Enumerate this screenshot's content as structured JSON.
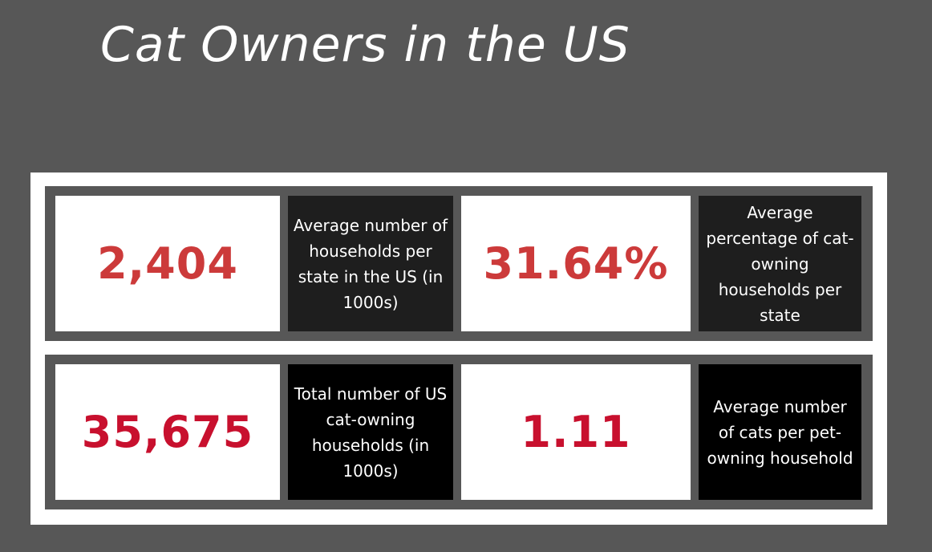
{
  "title": "Cat Owners in the US",
  "colors": {
    "background": "#575757",
    "panel": "#ffffff",
    "stat_red_top": "#cc3a3a",
    "stat_red_bottom": "#c8102e",
    "label_bg_top": "#1e1e1e",
    "label_bg_bottom": "#000000"
  },
  "rows": [
    {
      "stats": [
        {
          "value": "2,404",
          "label": "Average number of households per state in the US (in 1000s)"
        },
        {
          "value": "31.64%",
          "label": "Average percentage of cat-owning households per state"
        }
      ]
    },
    {
      "stats": [
        {
          "value": "35,675",
          "label": "Total number of US cat-owning households (in 1000s)"
        },
        {
          "value": "1.11",
          "label": "Average number of cats per pet-owning household"
        }
      ]
    }
  ]
}
